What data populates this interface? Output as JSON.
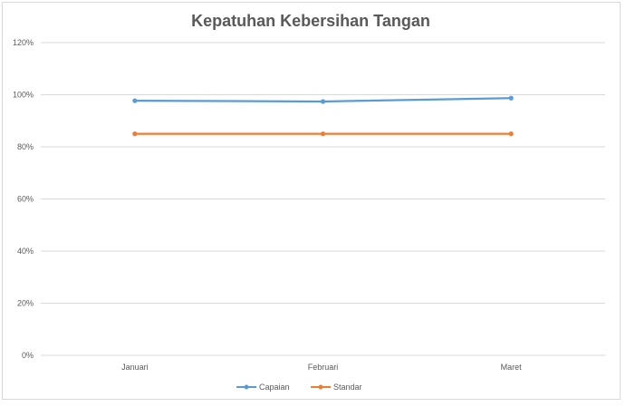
{
  "chart_data": {
    "type": "line",
    "title": "Kepatuhan Kebersihan Tangan",
    "categories": [
      "Januari",
      "Februari",
      "Maret"
    ],
    "y_ticks": [
      "0%",
      "20%",
      "40%",
      "60%",
      "80%",
      "100%",
      "120%"
    ],
    "ylim": [
      0,
      1.2
    ],
    "grid": true,
    "legend_position": "bottom",
    "series": [
      {
        "name": "Capaian",
        "values": [
          0.977,
          0.974,
          0.987
        ],
        "color": "#5b9bd5"
      },
      {
        "name": "Standar",
        "values": [
          0.85,
          0.85,
          0.85
        ],
        "color": "#ed7d31"
      }
    ]
  }
}
